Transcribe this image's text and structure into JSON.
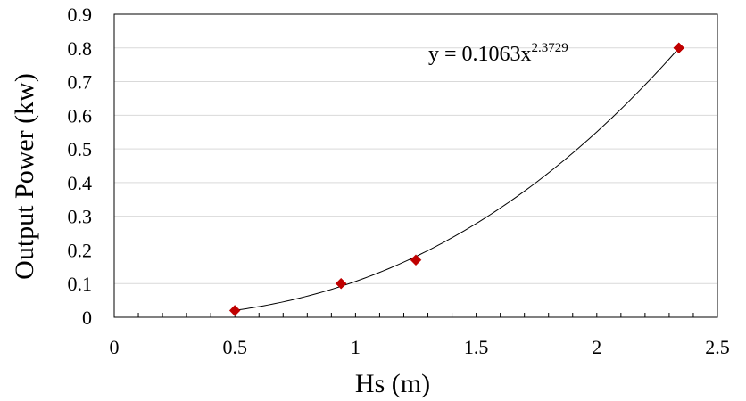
{
  "chart_data": {
    "type": "scatter",
    "xlabel": "Hs (m)",
    "ylabel": "Output Power (kw)",
    "xlim": [
      0,
      2.5
    ],
    "ylim": [
      0,
      0.9
    ],
    "xticks": [
      "0",
      "0.5",
      "1",
      "1.5",
      "2",
      "2.5"
    ],
    "yticks": [
      "0",
      "0.1",
      "0.2",
      "0.3",
      "0.4",
      "0.5",
      "0.6",
      "0.7",
      "0.8",
      "0.9"
    ],
    "grid": "horizontal",
    "series": [
      {
        "points": [
          {
            "x": 0.5,
            "y": 0.02
          },
          {
            "x": 0.94,
            "y": 0.1
          },
          {
            "x": 1.25,
            "y": 0.17
          },
          {
            "x": 2.34,
            "y": 0.8
          }
        ],
        "color": "#c00000",
        "marker": "diamond"
      }
    ],
    "trendline": {
      "type": "power",
      "coefficient": 0.1063,
      "exponent": 2.3729,
      "x_range": [
        0.5,
        2.34
      ],
      "color": "#000000",
      "label": {
        "base": "y = 0.1063x",
        "exponent": "2.3729"
      }
    }
  }
}
